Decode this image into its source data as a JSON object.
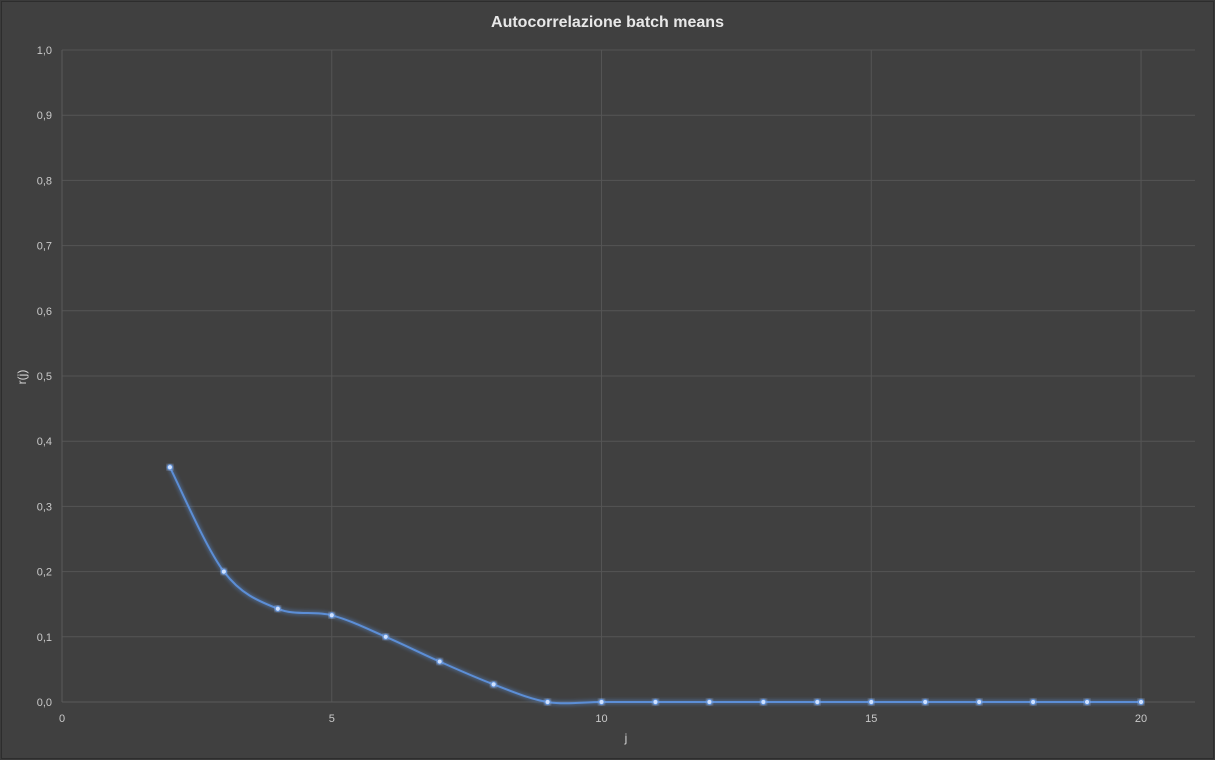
{
  "chart_data": {
    "type": "scatter",
    "title": "Autocorrelazione batch means",
    "xlabel": "j",
    "ylabel": "r(j)",
    "xlim": [
      0,
      21
    ],
    "ylim": [
      0,
      1
    ],
    "x_ticks": [
      0,
      5,
      10,
      15,
      20
    ],
    "y_ticks": [
      0.0,
      0.1,
      0.2,
      0.3,
      0.4,
      0.5,
      0.6,
      0.7,
      0.8,
      0.9,
      1.0
    ],
    "x_tick_labels": [
      "0",
      "5",
      "10",
      "15",
      "20"
    ],
    "y_tick_labels": [
      "0,0",
      "0,1",
      "0,2",
      "0,3",
      "0,4",
      "0,5",
      "0,6",
      "0,7",
      "0,8",
      "0,9",
      "1,0"
    ],
    "grid": true,
    "smooth_line": true,
    "markers": true,
    "series": [
      {
        "x": [
          2,
          3,
          4,
          5,
          6,
          7,
          8,
          9,
          10,
          11,
          12,
          13,
          14,
          15,
          16,
          17,
          18,
          19,
          20
        ],
        "y": [
          0.36,
          0.2,
          0.143,
          0.133,
          0.1,
          0.062,
          0.027,
          0.0,
          0.0,
          0.0,
          0.0,
          0.0,
          0.0,
          0.0,
          0.0,
          0.0,
          0.0,
          0.0,
          0.0
        ],
        "color": "#5b8ed6"
      }
    ],
    "colors": {
      "background": "#404040",
      "grid": "#555555",
      "axis": "#5a5a5a",
      "series": "#5b8ed6",
      "marker": "#cfe1ff"
    }
  }
}
